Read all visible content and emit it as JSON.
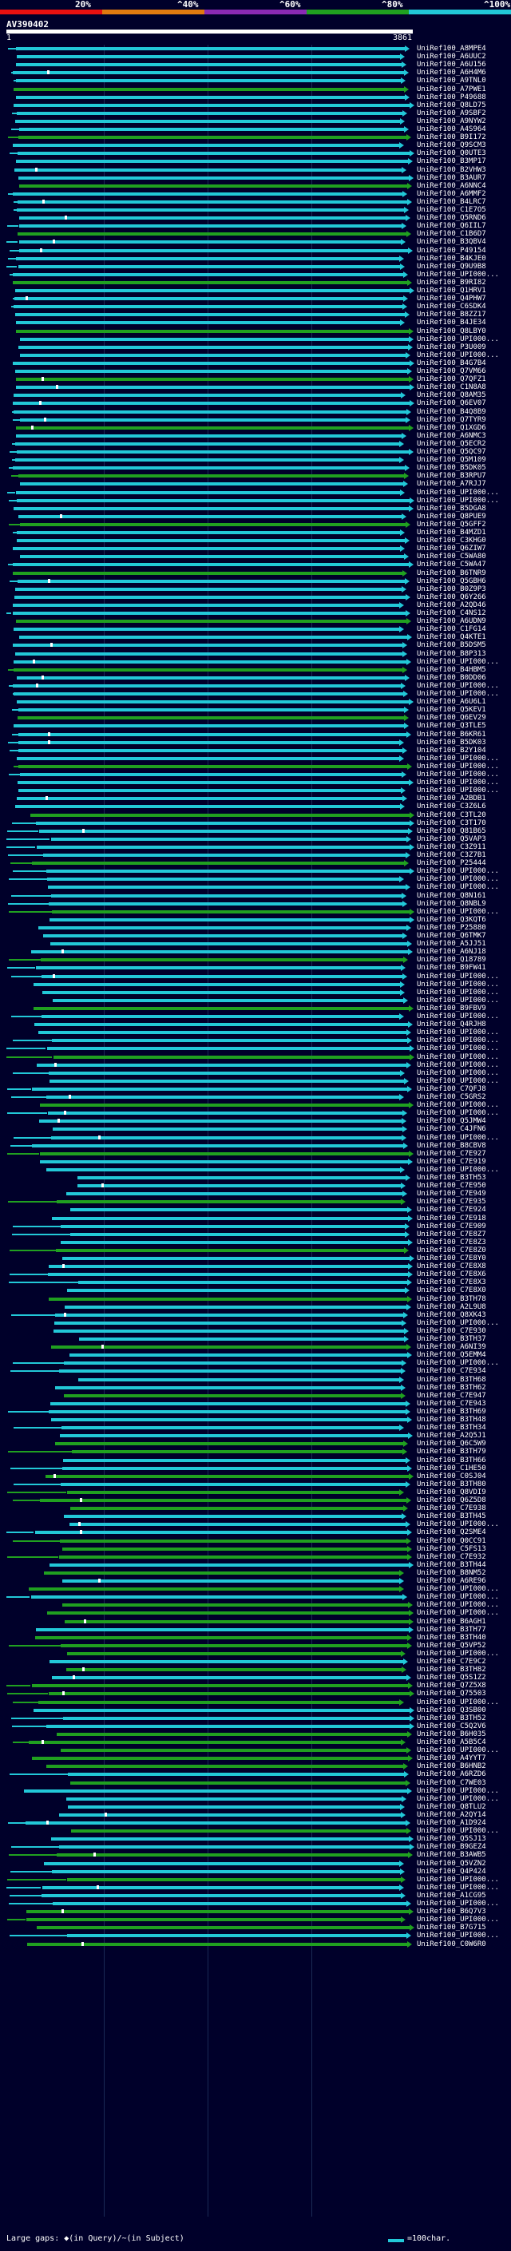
{
  "scale": {
    "labels": [
      "20%",
      "^40%",
      "^60%",
      "^80%",
      "^100%"
    ],
    "colors": [
      "#e81010",
      "#e07a10",
      "#8a2ab4",
      "#20a020",
      "#22c8d8"
    ]
  },
  "query": {
    "title": "AV390402",
    "start": "1",
    "end": "3861"
  },
  "footer": {
    "gaps_text": "Large gaps: ◆(in Query)/~(in Subject)",
    "legend_text": "=100char."
  },
  "colors": {
    "cyan": "#22c8d8",
    "green": "#20a020",
    "white": "#ffffff",
    "background": "#00002a"
  },
  "hits": [
    "UniRef100_A8MPE4",
    "UniRef100_A6UUC2",
    "UniRef100_A6U156",
    "UniRef100_A6H4M6",
    "UniRef100_A9TNL0",
    "UniRef100_A7PWE1",
    "UniRef100_P49688",
    "UniRef100_Q8LD75",
    "UniRef100_A9SBF2",
    "UniRef100_A9NYW2",
    "UniRef100_A4S964",
    "UniRef100_B9I172",
    "UniRef100_Q9SCM3",
    "UniRef100_Q0UTE3",
    "UniRef100_B3MP17",
    "UniRef100_B2VHW3",
    "UniRef100_B3AUR7",
    "UniRef100_A6NNC4",
    "UniRef100_A6MMF2",
    "UniRef100_B4LRC7",
    "UniRef100_C1E7O5",
    "UniRef100_Q5RND6",
    "UniRef100_Q6IIL7",
    "UniRef100_C1B6D7",
    "UniRef100_B3QBV4",
    "UniRef100_P49154",
    "UniRef100_B4KJE0",
    "UniRef100_Q9U9B8",
    "UniRef100_UPI000...",
    "UniRef100_B9RI82",
    "UniRef100_Q1HRV1",
    "UniRef100_Q4PHW7",
    "UniRef100_C6SDK4",
    "UniRef100_B8ZZ17",
    "UniRef100_B4JE34",
    "UniRef100_Q8LBY0",
    "UniRef100_UPI000...",
    "UniRef100_P3U009",
    "UniRef100_UPI000...",
    "UniRef100_B4G7B4",
    "UniRef100_Q7VM66",
    "UniRef100_Q7QFZ1",
    "UniRef100_C1N8A8",
    "UniRef100_Q8AM35",
    "UniRef100_Q6EV07",
    "UniRef100_B4Q8B9",
    "UniRef100_Q7TYR9",
    "UniRef100_Q1XGD6",
    "UniRef100_A6NMC3",
    "UniRef100_Q5ECR2",
    "UniRef100_Q5QC97",
    "UniRef100_Q5M109",
    "UniRef100_B5DK05",
    "UniRef100_B3RPU7",
    "UniRef100_A7RJJ7",
    "UniRef100_UPI000...",
    "UniRef100_UPI000...",
    "UniRef100_B5DGA8",
    "UniRef100_Q8PUE9",
    "UniRef100_Q5GFF2",
    "UniRef100_B4MZD1",
    "UniRef100_C3KHG0",
    "UniRef100_Q6ZIW7",
    "UniRef100_C5WA80",
    "UniRef100_C5WA47",
    "UniRef100_B6TNR9",
    "UniRef100_Q5GBH6",
    "UniRef100_B0Z9P3",
    "UniRef100_Q6Y266",
    "UniRef100_A2QD46",
    "UniRef100_C4NS12",
    "UniRef100_A6UDN9",
    "UniRef100_C1FG14",
    "UniRef100_Q4KTE1",
    "UniRef100_B5DSM5",
    "UniRef100_B8P313",
    "UniRef100_UPI000...",
    "UniRef100_B4HBM5",
    "UniRef100_B0DD06",
    "UniRef100_UPI000...",
    "UniRef100_UPI000...",
    "UniRef100_A6U6L1",
    "UniRef100_Q5KEV1",
    "UniRef100_Q6EV29",
    "UniRef100_Q3TLE5",
    "UniRef100_B6KR61",
    "UniRef100_B5DK03",
    "UniRef100_B2Y104",
    "UniRef100_UPI000...",
    "UniRef100_UPI000...",
    "UniRef100_UPI000...",
    "UniRef100_UPI000...",
    "UniRef100_UPI000...",
    "UniRef100_A2BDB1",
    "UniRef100_C3Z6L6",
    "UniRef100_C3TL20",
    "UniRef100_C3T170",
    "UniRef100_Q81B65",
    "UniRef100_Q5VAP3",
    "UniRef100_C3Z911",
    "UniRef100_C3Z7B1",
    "UniRef100_P25444",
    "UniRef100_UPI000...",
    "UniRef100_UPI000...",
    "UniRef100_UPI000...",
    "UniRef100_Q8N161",
    "UniRef100_Q8NBL9",
    "UniRef100_UPI000...",
    "UniRef100_Q3KQT6",
    "UniRef100_P25880",
    "UniRef100_Q6TMK7",
    "UniRef100_A5JJ51",
    "UniRef100_A6NJ18",
    "UniRef100_Q18789",
    "UniRef100_B9FW41",
    "UniRef100_UPI000...",
    "UniRef100_UPI000...",
    "UniRef100_UPI000...",
    "UniRef100_UPI000...",
    "UniRef100_B9FBV9",
    "UniRef100_UPI000...",
    "UniRef100_Q4RJH8",
    "UniRef100_UPI000...",
    "UniRef100_UPI000...",
    "UniRef100_UPI000...",
    "UniRef100_UPI000...",
    "UniRef100_UPI000...",
    "UniRef100_UPI000...",
    "UniRef100_UPI000...",
    "UniRef100_C7QFJ8",
    "UniRef100_C5GRS2",
    "UniRef100_UPI000...",
    "UniRef100_UPI000...",
    "UniRef100_Q5JMW4",
    "UniRef100_C4JFN6",
    "UniRef100_UPI000...",
    "UniRef100_B8CBV8",
    "UniRef100_C7E927",
    "UniRef100_C7E919",
    "UniRef100_UPI000...",
    "UniRef100_B3TH53",
    "UniRef100_C7E950",
    "UniRef100_C7E949",
    "UniRef100_C7E935",
    "UniRef100_C7E924",
    "UniRef100_C7E918",
    "UniRef100_C7E909",
    "UniRef100_C7E8Z7",
    "UniRef100_C7E8Z3",
    "UniRef100_C7E8Z0",
    "UniRef100_C7E8Y0",
    "UniRef100_C7E8X8",
    "UniRef100_C7E8X6",
    "UniRef100_C7E8X3",
    "UniRef100_C7E8X0",
    "UniRef100_B3TH78",
    "UniRef100_A2L9U8",
    "UniRef100_Q8XK43",
    "UniRef100_UPI000...",
    "UniRef100_C7E930",
    "UniRef100_B3TH37",
    "UniRef100_A6NI39",
    "UniRef100_Q5EMM4",
    "UniRef100_UPI000...",
    "UniRef100_C7E934",
    "UniRef100_B3TH68",
    "UniRef100_B3TH62",
    "UniRef100_C7E947",
    "UniRef100_C7E943",
    "UniRef100_B3TH69",
    "UniRef100_B3TH48",
    "UniRef100_B3TH34",
    "UniRef100_A2Q5J1",
    "UniRef100_Q6C5W9",
    "UniRef100_B3TH79",
    "UniRef100_B3TH66",
    "UniRef100_C1HE50",
    "UniRef100_C0SJ04",
    "UniRef100_B3TH80",
    "UniRef100_Q8VDI9",
    "UniRef100_Q6Z5D8",
    "UniRef100_C7E938",
    "UniRef100_B3TH45",
    "UniRef100_UPI000...",
    "UniRef100_Q2SME4",
    "UniRef100_Q0CC91",
    "UniRef100_C5FS13",
    "UniRef100_C7E932",
    "UniRef100_B3TH44",
    "UniRef100_B8NM52",
    "UniRef100_A6RE96",
    "UniRef100_UPI000...",
    "UniRef100_UPI000...",
    "UniRef100_UPI000...",
    "UniRef100_UPI000...",
    "UniRef100_B6AGH1",
    "UniRef100_B3TH77",
    "UniRef100_B3TH40",
    "UniRef100_Q5VP52",
    "UniRef100_UPI000...",
    "UniRef100_C7E9C2",
    "UniRef100_B3TH82",
    "UniRef100_Q5S1Z2",
    "UniRef100_Q7Z5X8",
    "UniRef100_Q75503",
    "UniRef100_UPI000...",
    "UniRef100_Q3SB00",
    "UniRef100_B3TH52",
    "UniRef100_C5Q2V6",
    "UniRef100_B6H035",
    "UniRef100_A5B5C4",
    "UniRef100_UPI000...",
    "UniRef100_A4YYT7",
    "UniRef100_B6HNB2",
    "UniRef100_A6RZD6",
    "UniRef100_C7WE03",
    "UniRef100_UPI000...",
    "UniRef100_UPI000...",
    "UniRef100_Q8TLU2",
    "UniRef100_A2QY14",
    "UniRef100_A1D924",
    "UniRef100_UPI000...",
    "UniRef100_Q5SJ13",
    "UniRef100_B9GEZ4",
    "UniRef100_B3AWB5",
    "UniRef100_Q5VZN2",
    "UniRef100_Q4P424",
    "UniRef100_UPI000...",
    "UniRef100_UPI000...",
    "UniRef100_A1CG95",
    "UniRef100_UPI000...",
    "UniRef100_B6Q7V3",
    "UniRef100_UPI000...",
    "UniRef100_B7G715",
    "UniRef100_UPI000...",
    "UniRef100_C0W6R0"
  ]
}
